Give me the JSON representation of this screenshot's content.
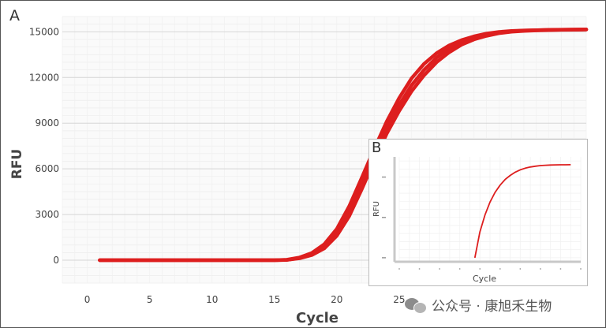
{
  "chart_data": [
    {
      "panel": "A",
      "type": "line",
      "xlabel": "Cycle",
      "ylabel": "RFU",
      "xlim": [
        -2,
        40
      ],
      "ylim": [
        -1500,
        16000
      ],
      "xticks": [
        0,
        5,
        10,
        15,
        20,
        25
      ],
      "yticks": [
        0,
        3000,
        6000,
        9000,
        12000,
        15000
      ],
      "xtick_labels": [
        "0",
        "5",
        "10",
        "15",
        "20",
        "25"
      ],
      "ytick_labels": [
        "0",
        "3000",
        "6000",
        "9000",
        "12000",
        "15000"
      ],
      "grid": true,
      "color": "#dd1e1e",
      "x": [
        1,
        5,
        10,
        15,
        16,
        17,
        18,
        19,
        20,
        21,
        22,
        23,
        24,
        25,
        26,
        27,
        28,
        29,
        30,
        31,
        32,
        33,
        34,
        35,
        36,
        37,
        38,
        39,
        40
      ],
      "series_values": [
        [
          0,
          0,
          0,
          0,
          20,
          150,
          400,
          900,
          1800,
          3200,
          5000,
          6900,
          8700,
          10200,
          11500,
          12500,
          13300,
          13900,
          14300,
          14600,
          14800,
          14950,
          15030,
          15080,
          15100,
          15120,
          15130,
          15140,
          15150
        ],
        [
          0,
          0,
          0,
          0,
          30,
          180,
          480,
          1050,
          2050,
          3550,
          5400,
          7300,
          9100,
          10650,
          11950,
          12900,
          13600,
          14100,
          14450,
          14700,
          14880,
          14990,
          15060,
          15090,
          15110,
          15130,
          15140,
          15150,
          15160
        ],
        [
          0,
          0,
          0,
          0,
          15,
          120,
          340,
          780,
          1600,
          2900,
          4650,
          6500,
          8300,
          9800,
          11100,
          12150,
          13000,
          13650,
          14150,
          14500,
          14730,
          14900,
          15000,
          15060,
          15090,
          15110,
          15125,
          15135,
          15145
        ]
      ]
    },
    {
      "panel": "B",
      "type": "line",
      "xlabel": "Cycle",
      "ylabel": "RFU",
      "color": "#dd1e1e",
      "x": [
        15,
        16,
        17,
        18,
        19,
        20,
        21,
        22,
        23,
        24,
        25,
        26,
        27,
        28,
        29,
        30,
        31,
        32,
        33,
        34
      ],
      "values": [
        0,
        3200,
        5300,
        6900,
        8100,
        9000,
        9700,
        10200,
        10600,
        10900,
        11100,
        11250,
        11350,
        11420,
        11460,
        11490,
        11510,
        11520,
        11525,
        11530
      ]
    }
  ],
  "watermark": {
    "icon": "wechat-icon",
    "text": "公众号 · 康旭禾生物"
  }
}
